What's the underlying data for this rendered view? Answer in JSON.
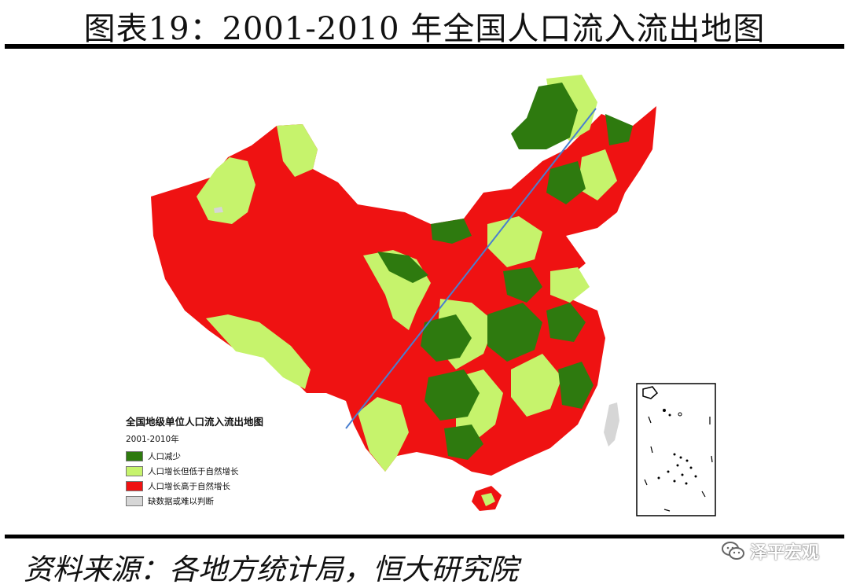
{
  "title": "图表19：2001-2010 年全国人口流入流出地图",
  "legend": {
    "title": "全国地级单位人口流入流出地图",
    "subtitle": "2001-2010年",
    "items": [
      {
        "label": "人口减少",
        "color": "#2e7a0f"
      },
      {
        "label": "人口增长但低于自然增长",
        "color": "#c6f36c"
      },
      {
        "label": "人口增长高于自然增长",
        "color": "#ef1212"
      },
      {
        "label": "缺数据或难以判断",
        "color": "#d6d6d6"
      }
    ]
  },
  "source": "资料来源：各地方统计局，恒大研究院",
  "watermark": "泽平宏观",
  "colors": {
    "decrease": "#2e7a0f",
    "slow_growth": "#c6f36c",
    "fast_growth": "#ef1212",
    "no_data": "#d6d6d6"
  }
}
